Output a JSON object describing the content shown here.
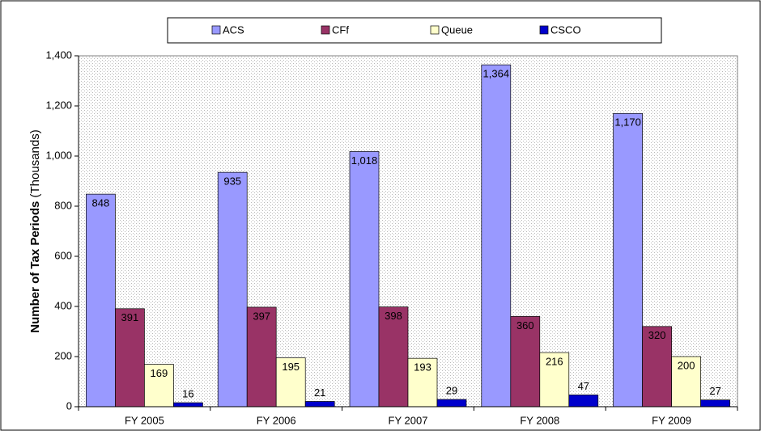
{
  "chart_data": {
    "type": "bar",
    "y_label": "Number of Tax Periods",
    "y_label_unit": "(Thousands)",
    "categories": [
      "FY 2005",
      "FY 2006",
      "FY 2007",
      "FY 2008",
      "FY 2009"
    ],
    "series": [
      {
        "name": "ACS",
        "color": "#9999ff",
        "values": [
          848,
          935,
          1018,
          1364,
          1170
        ],
        "value_labels": [
          "848",
          "935",
          "1,018",
          "1,364",
          "1,170"
        ]
      },
      {
        "name": "CFf",
        "color": "#993366",
        "values": [
          391,
          397,
          398,
          360,
          320
        ]
      },
      {
        "name": "Queue",
        "color": "#ffffcc",
        "values": [
          169,
          195,
          193,
          216,
          200
        ]
      },
      {
        "name": "CSCO",
        "color": "#0000cc",
        "values": [
          16,
          21,
          29,
          47,
          27
        ]
      }
    ],
    "ylim": [
      0,
      1400
    ],
    "yticks": [
      0,
      200,
      400,
      600,
      800,
      {
        "value": 1000,
        "label": "1,000"
      },
      {
        "value": 1200,
        "label": "1,200"
      },
      {
        "value": 1400,
        "label": "1,400"
      }
    ],
    "legend": "top"
  }
}
